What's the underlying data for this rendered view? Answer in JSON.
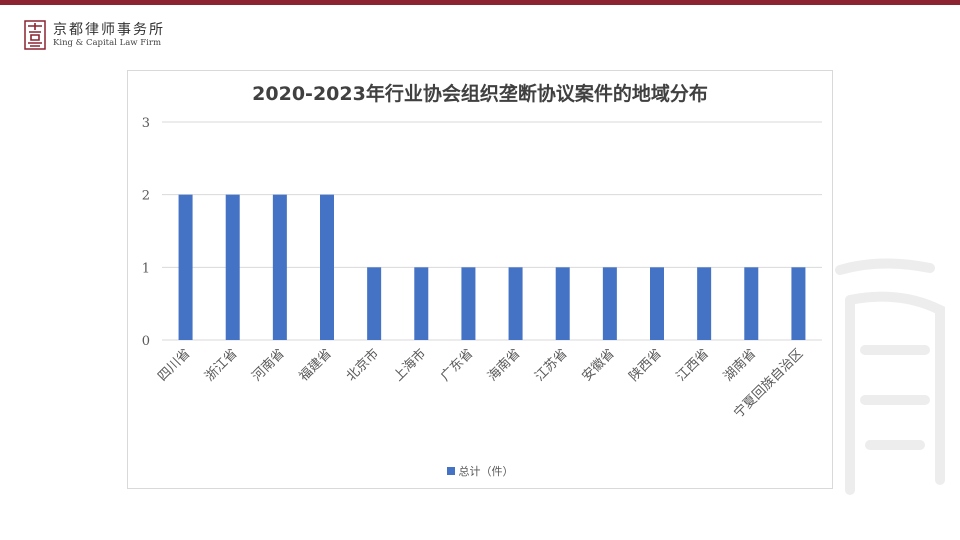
{
  "header": {
    "firm_name_cn": "京都律师事务所",
    "firm_name_en": "King & Capital Law Firm"
  },
  "colors": {
    "brand": "#8b2330",
    "bar": "#4472c4",
    "grid": "#d9d9d9"
  },
  "chart_data": {
    "type": "bar",
    "title": "2020-2023年行业协会组织垄断协议案件的地域分布",
    "xlabel": "",
    "ylabel": "",
    "categories": [
      "四川省",
      "浙江省",
      "河南省",
      "福建省",
      "北京市",
      "上海市",
      "广东省",
      "海南省",
      "江苏省",
      "安徽省",
      "陕西省",
      "江西省",
      "湖南省",
      "宁夏回族自治区"
    ],
    "series": [
      {
        "name": "总计（件）",
        "values": [
          2,
          2,
          2,
          2,
          1,
          1,
          1,
          1,
          1,
          1,
          1,
          1,
          1,
          1
        ]
      }
    ],
    "ylim": [
      0,
      3
    ],
    "yticks": [
      0,
      1,
      2,
      3
    ],
    "grid": true,
    "legend_position": "bottom"
  }
}
